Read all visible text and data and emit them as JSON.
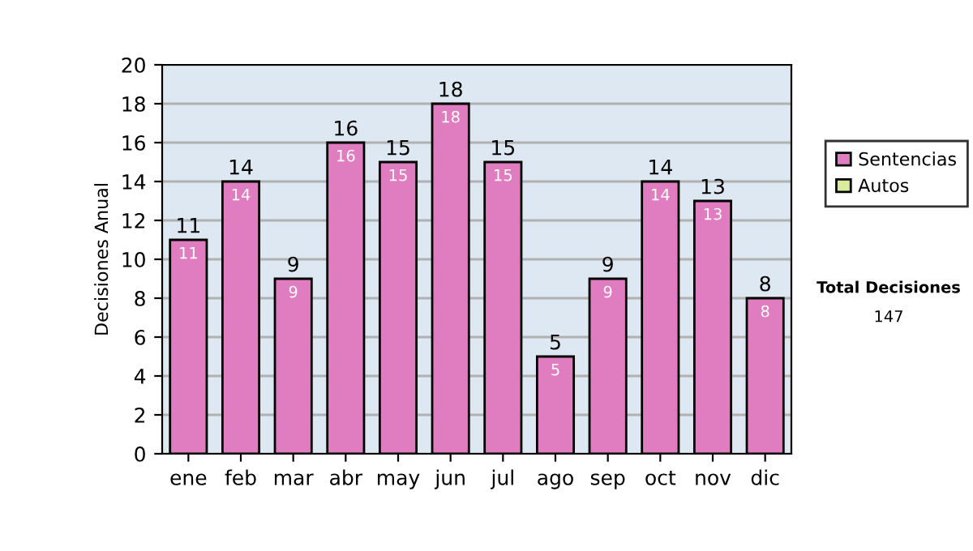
{
  "chart_data": {
    "type": "bar",
    "stacked": true,
    "ylabel": "Decisiones Anual",
    "categories": [
      "ene",
      "feb",
      "mar",
      "abr",
      "may",
      "jun",
      "jul",
      "ago",
      "sep",
      "oct",
      "nov",
      "dic"
    ],
    "series": [
      {
        "name": "Sentencias",
        "color": "#e07cc0",
        "values": [
          11,
          14,
          9,
          16,
          15,
          18,
          15,
          5,
          9,
          14,
          13,
          8
        ]
      },
      {
        "name": "Autos",
        "color": "#d8ec9c",
        "values": [
          null,
          null,
          null,
          null,
          null,
          null,
          null,
          null,
          null,
          null,
          null,
          null
        ]
      }
    ],
    "data_labels": true,
    "totals": [
      "11",
      "14",
      "9",
      "16",
      "15",
      "18",
      "15",
      "5",
      "9",
      "14",
      "13",
      "8"
    ],
    "ylim": [
      0,
      20
    ],
    "yticks": [
      0,
      2,
      4,
      6,
      8,
      10,
      12,
      14,
      16,
      18,
      20
    ],
    "grid": "y",
    "legend": "right",
    "annotations": [
      "Total Decisiones",
      "147"
    ]
  }
}
